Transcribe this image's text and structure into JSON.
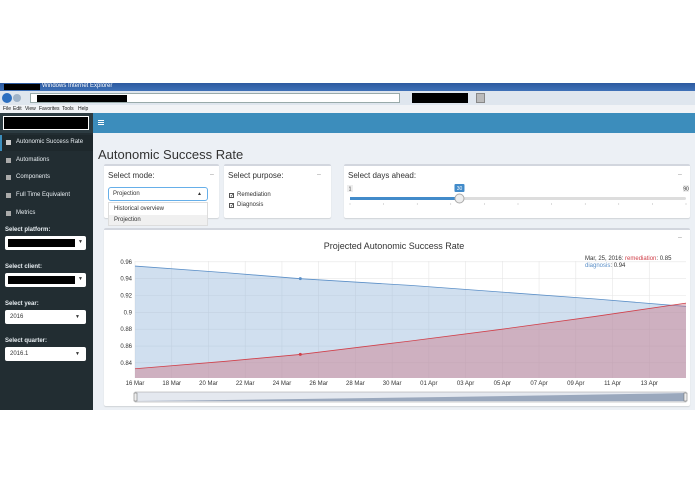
{
  "browser": {
    "title": "Windows Internet Explorer",
    "menu": [
      "File",
      "Edit",
      "View",
      "Favorites",
      "Tools",
      "Help"
    ]
  },
  "sidebar": {
    "menu": [
      "Autonomic Success Rate",
      "Automations",
      "Components",
      "Full Time Equivalent",
      "Metrics"
    ],
    "filters": [
      {
        "label": "Select platform:"
      },
      {
        "label": "Select client:"
      },
      {
        "label": "Select year:",
        "value": "2016"
      },
      {
        "label": "Select quarter:",
        "value": "2016.1"
      }
    ]
  },
  "page_title": "Autonomic Success Rate",
  "mode": {
    "label": "Select mode:",
    "value": "Projection",
    "options": [
      "Historical overview",
      "Projection"
    ]
  },
  "purpose": {
    "label": "Select purpose:",
    "options": [
      "Remediation",
      "Diagnosis"
    ]
  },
  "days": {
    "label": "Select days ahead:",
    "min": 1,
    "max": 90,
    "value": 30
  },
  "chart_data": {
    "type": "area",
    "title": "Projected Autonomic Success Rate",
    "x": [
      0,
      5,
      9,
      15,
      20,
      25,
      30
    ],
    "series": [
      {
        "name": "diagnosis",
        "color": "#5b8fc7",
        "fill": "rgba(150,185,220,0.45)",
        "values": [
          0.955,
          0.947,
          0.94,
          0.932,
          0.924,
          0.916,
          0.907
        ]
      },
      {
        "name": "remediation",
        "color": "#d0404a",
        "fill": "rgba(205,120,135,0.45)",
        "values": [
          0.833,
          0.842,
          0.85,
          0.866,
          0.88,
          0.895,
          0.911
        ]
      }
    ],
    "xlim": [
      0,
      30
    ],
    "xticks": [
      {
        "value": 0,
        "label": "16 Mar"
      },
      {
        "value": 2,
        "label": "18 Mar"
      },
      {
        "value": 4,
        "label": "20 Mar"
      },
      {
        "value": 6,
        "label": "22 Mar"
      },
      {
        "value": 8,
        "label": "24 Mar"
      },
      {
        "value": 10,
        "label": "26 Mar"
      },
      {
        "value": 12,
        "label": "28 Mar"
      },
      {
        "value": 14,
        "label": "30 Mar"
      },
      {
        "value": 16,
        "label": "01 Apr"
      },
      {
        "value": 18,
        "label": "03 Apr"
      },
      {
        "value": 20,
        "label": "05 Apr"
      },
      {
        "value": 22,
        "label": "07 Apr"
      },
      {
        "value": 24,
        "label": "09 Apr"
      },
      {
        "value": 26,
        "label": "11 Apr"
      },
      {
        "value": 28,
        "label": "13 Apr"
      }
    ],
    "ylim": [
      0.822,
      0.961
    ],
    "yticks": [
      0.84,
      0.86,
      0.88,
      0.9,
      0.92,
      0.94,
      0.96
    ],
    "grid": true,
    "hover_x": 9,
    "tooltip": {
      "date": "Mar, 25, 2016:",
      "lines": [
        ": 0.85",
        ": 0.94"
      ]
    }
  }
}
